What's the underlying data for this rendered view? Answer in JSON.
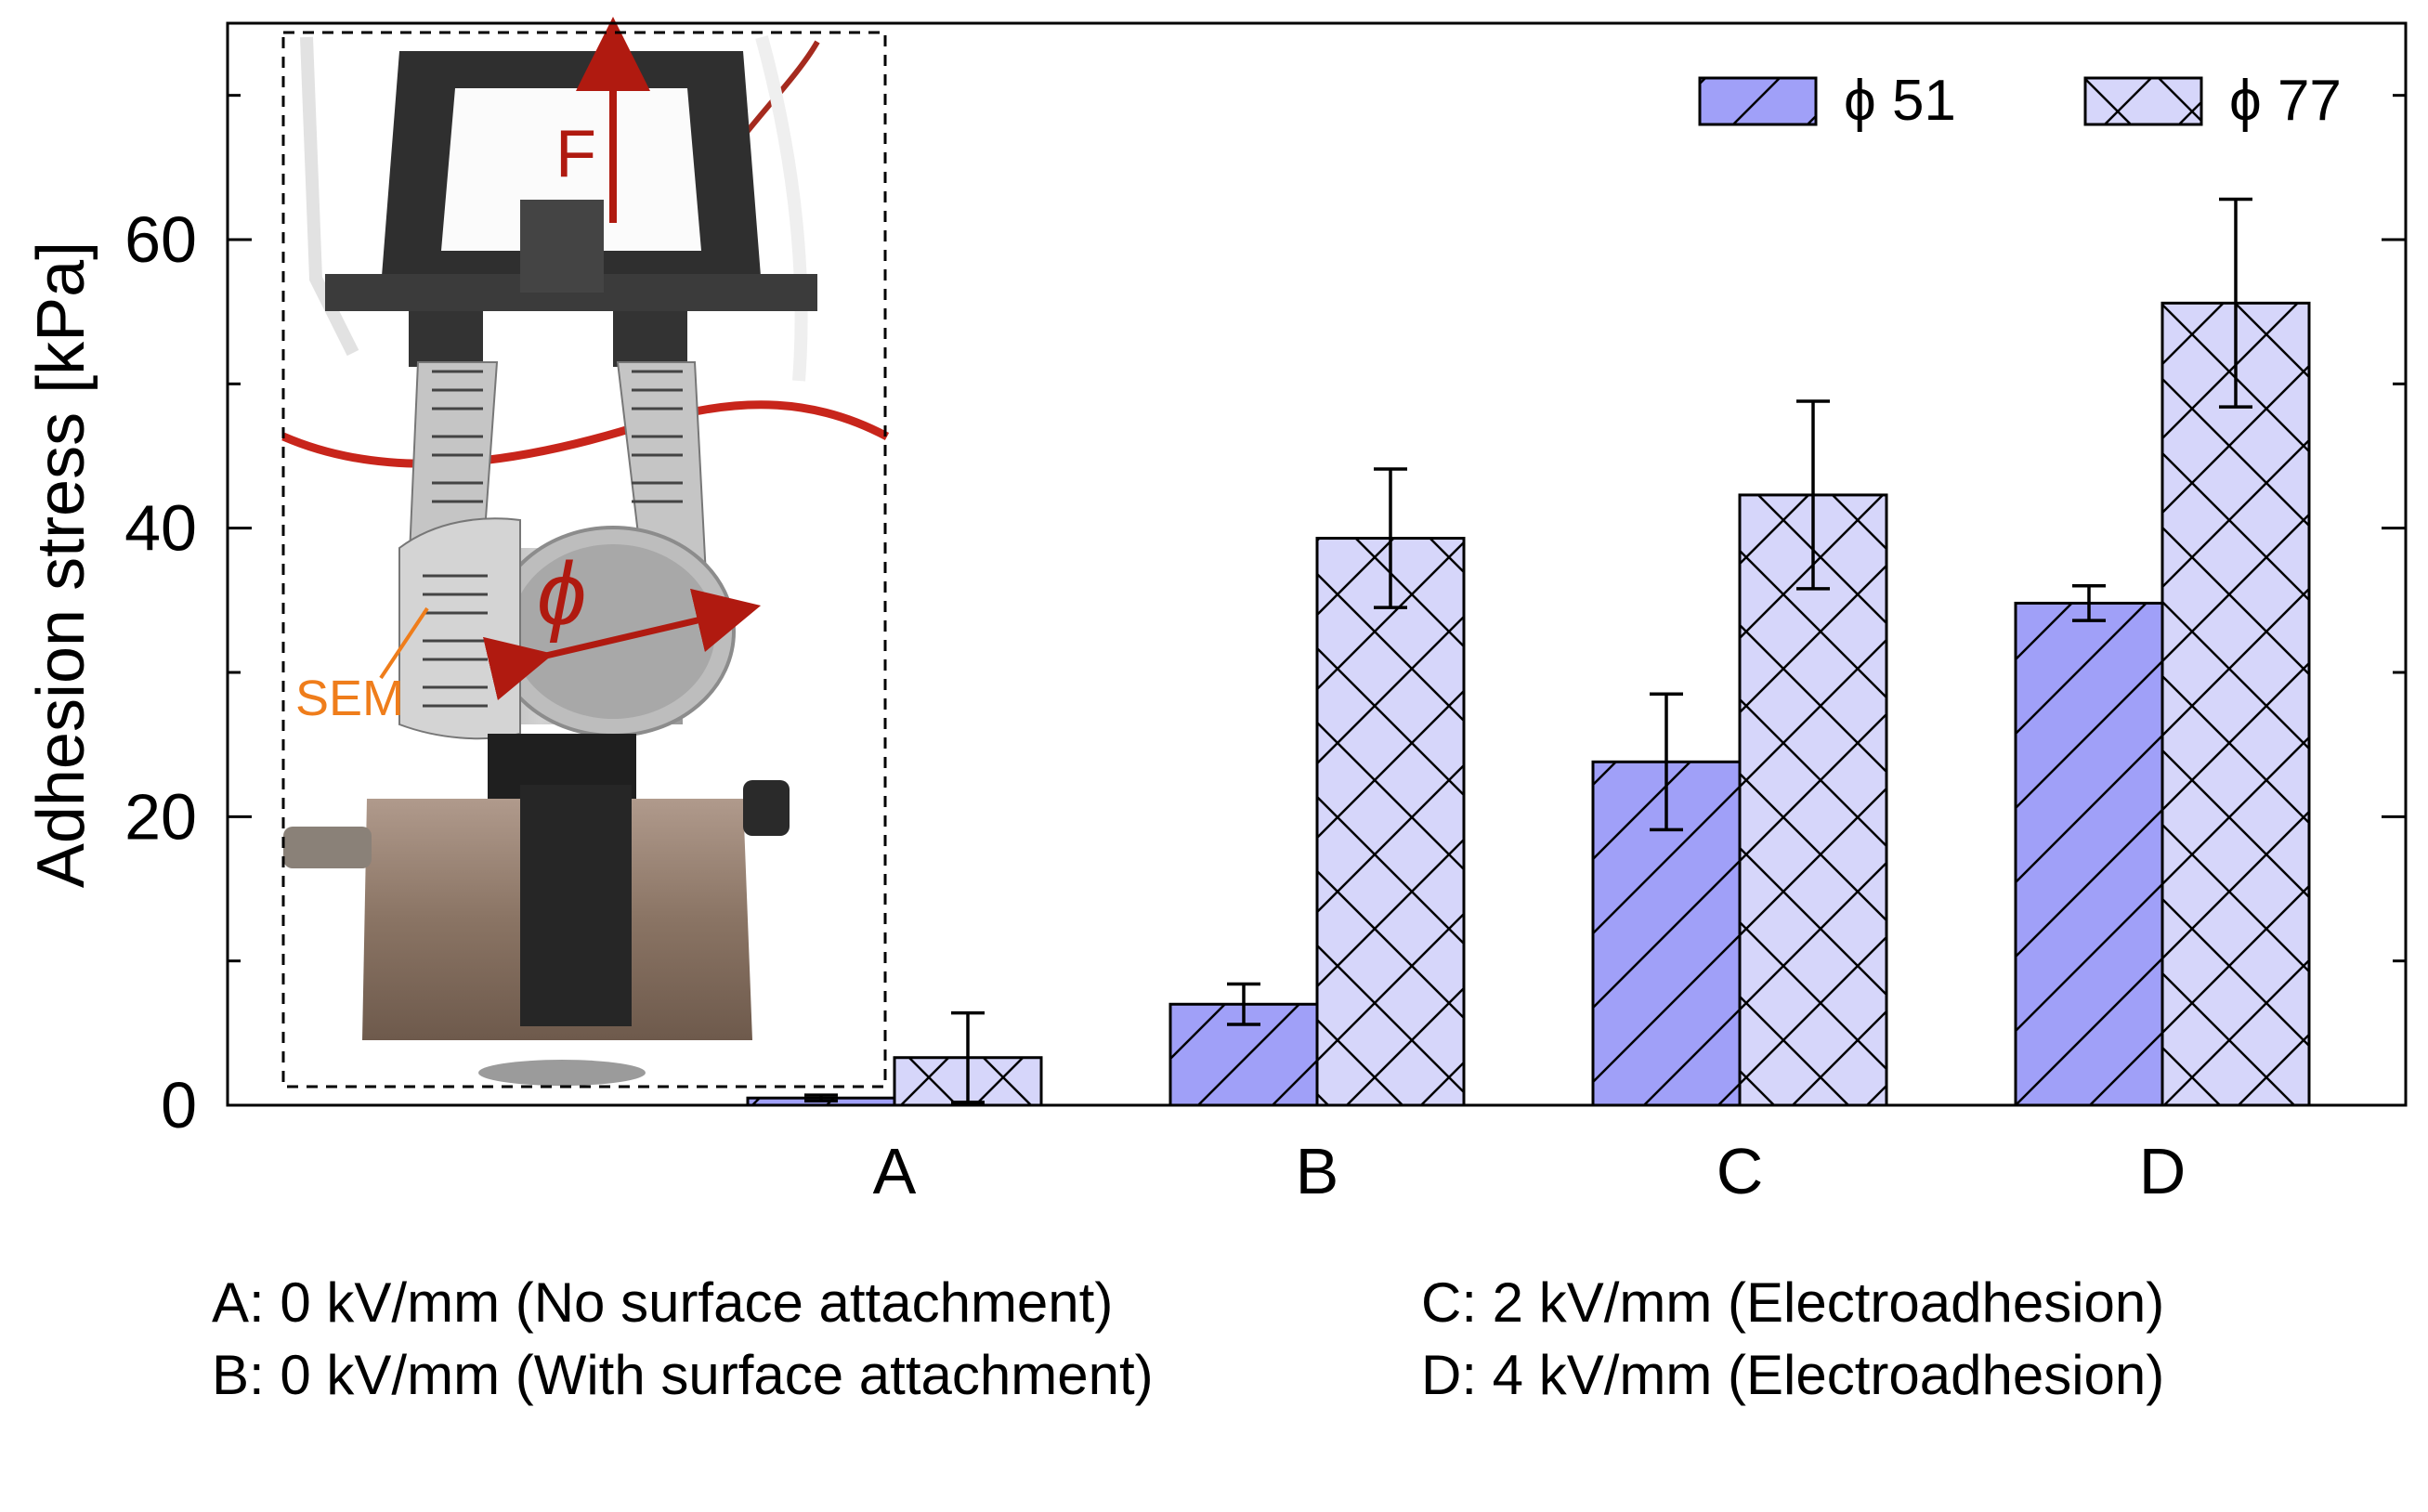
{
  "chart_data": {
    "type": "bar",
    "ylabel": "Adhesion stress [kPa]",
    "ylim": [
      0,
      75
    ],
    "yticks": [
      0,
      20,
      40,
      60
    ],
    "categories": [
      "A",
      "B",
      "C",
      "D"
    ],
    "series": [
      {
        "name": "ϕ 51",
        "values": [
          0.5,
          7.0,
          23.8,
          34.8
        ],
        "errors": [
          0.2,
          1.4,
          4.7,
          1.2
        ],
        "color": "#a0a0f8",
        "hatch": "diagonal"
      },
      {
        "name": "ϕ 77",
        "values": [
          3.3,
          39.3,
          42.3,
          55.6
        ],
        "errors": [
          3.1,
          4.8,
          6.5,
          7.2
        ],
        "color": "#d6d6fa",
        "hatch": "crosshatch"
      }
    ],
    "legend_position": "top-right",
    "grid": false,
    "category_descriptions": [
      "A: 0 kV/mm (No surface attachment)",
      "B: 0 kV/mm (With surface attachment)",
      "C: 2 kV/mm (Electroadhesion)",
      "D: 4 kV/mm (Electroadhesion)"
    ],
    "inset_photo_labels": {
      "force": "F",
      "diameter": "ϕ",
      "sample": "SEM"
    }
  }
}
